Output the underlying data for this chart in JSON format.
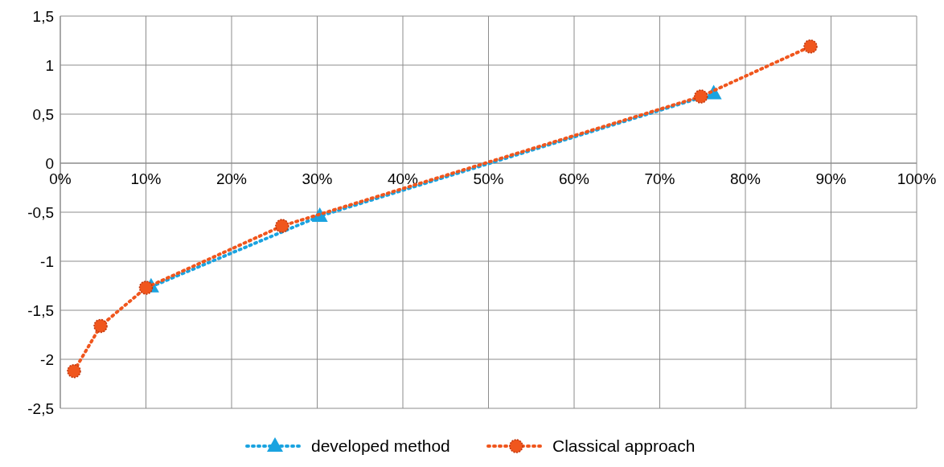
{
  "chart_data": {
    "type": "line",
    "xlim": [
      0,
      1
    ],
    "ylim": [
      -2.5,
      1.5
    ],
    "xticks": [
      {
        "value": 0,
        "label": "0%"
      },
      {
        "value": 0.1,
        "label": "10%"
      },
      {
        "value": 0.2,
        "label": "20%"
      },
      {
        "value": 0.3,
        "label": "30%"
      },
      {
        "value": 0.4,
        "label": "40%"
      },
      {
        "value": 0.5,
        "label": "50%"
      },
      {
        "value": 0.6,
        "label": "60%"
      },
      {
        "value": 0.7,
        "label": "70%"
      },
      {
        "value": 0.8,
        "label": "80%"
      },
      {
        "value": 0.9,
        "label": "90%"
      },
      {
        "value": 1,
        "label": "100%"
      }
    ],
    "yticks": [
      {
        "value": -2.5,
        "label": "-2,5"
      },
      -2,
      {
        "value": -1.5,
        "label": "-1,5"
      },
      -1,
      {
        "value": -0.5,
        "label": "-0,5"
      },
      0,
      {
        "value": 0.5,
        "label": "0,5"
      },
      1,
      {
        "value": 1.5,
        "label": "1,5"
      }
    ],
    "grid": true,
    "legend": "bottom",
    "line_style": "dotted",
    "series": [
      {
        "name": "developed method",
        "color": "#1aa3e0",
        "marker": "triangle",
        "x": [
          0.106,
          0.303,
          0.763
        ],
        "values": [
          -1.26,
          -0.54,
          0.71
        ]
      },
      {
        "name": "Classical approach",
        "color": "#f0561d",
        "marker": "circle",
        "x": [
          0.016,
          0.047,
          0.1,
          0.259,
          0.748,
          0.876
        ],
        "values": [
          -2.12,
          -1.66,
          -1.27,
          -0.64,
          0.68,
          1.19
        ]
      }
    ]
  }
}
